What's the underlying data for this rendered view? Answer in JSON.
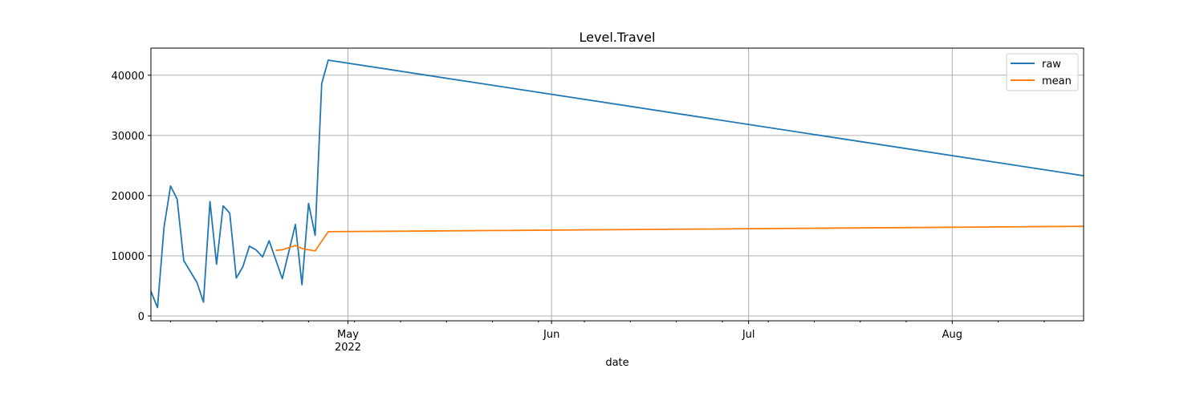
{
  "chart_data": {
    "type": "line",
    "title": "Level.Travel",
    "xlabel": "date",
    "ylabel": "",
    "x_range": [
      "2022-04-01",
      "2022-08-21"
    ],
    "ylim": [
      -800,
      44500
    ],
    "grid": true,
    "legend_position": "top-right",
    "x_major_ticks": [
      {
        "date": "2022-05-01",
        "label": "May",
        "sublabel": "2022"
      },
      {
        "date": "2022-06-01",
        "label": "Jun",
        "sublabel": ""
      },
      {
        "date": "2022-07-01",
        "label": "Jul",
        "sublabel": ""
      },
      {
        "date": "2022-08-01",
        "label": "Aug",
        "sublabel": ""
      }
    ],
    "y_ticks": [
      0,
      10000,
      20000,
      30000,
      40000
    ],
    "y_tick_labels": [
      "0",
      "10000",
      "20000",
      "30000",
      "40000"
    ],
    "series": [
      {
        "name": "raw",
        "color": "#1f77b4",
        "points": [
          [
            "2022-04-01",
            4100
          ],
          [
            "2022-04-02",
            1400
          ],
          [
            "2022-04-03",
            14800
          ],
          [
            "2022-04-04",
            21600
          ],
          [
            "2022-04-05",
            19400
          ],
          [
            "2022-04-06",
            9200
          ],
          [
            "2022-04-08",
            5600
          ],
          [
            "2022-04-09",
            2300
          ],
          [
            "2022-04-10",
            19000
          ],
          [
            "2022-04-11",
            8600
          ],
          [
            "2022-04-12",
            18300
          ],
          [
            "2022-04-13",
            17100
          ],
          [
            "2022-04-14",
            6300
          ],
          [
            "2022-04-15",
            8200
          ],
          [
            "2022-04-16",
            11600
          ],
          [
            "2022-04-17",
            11000
          ],
          [
            "2022-04-18",
            9800
          ],
          [
            "2022-04-19",
            12500
          ],
          [
            "2022-04-21",
            6200
          ],
          [
            "2022-04-23",
            15200
          ],
          [
            "2022-04-24",
            5200
          ],
          [
            "2022-04-25",
            18700
          ],
          [
            "2022-04-26",
            13400
          ],
          [
            "2022-04-27",
            38600
          ],
          [
            "2022-04-28",
            42500
          ],
          [
            "2022-08-21",
            23300
          ]
        ]
      },
      {
        "name": "mean",
        "color": "#ff7f0e",
        "points": [
          [
            "2022-04-20",
            10900
          ],
          [
            "2022-04-21",
            11000
          ],
          [
            "2022-04-23",
            11700
          ],
          [
            "2022-04-24",
            11200
          ],
          [
            "2022-04-26",
            10800
          ],
          [
            "2022-04-28",
            14000
          ],
          [
            "2022-08-21",
            14900
          ]
        ]
      }
    ]
  }
}
